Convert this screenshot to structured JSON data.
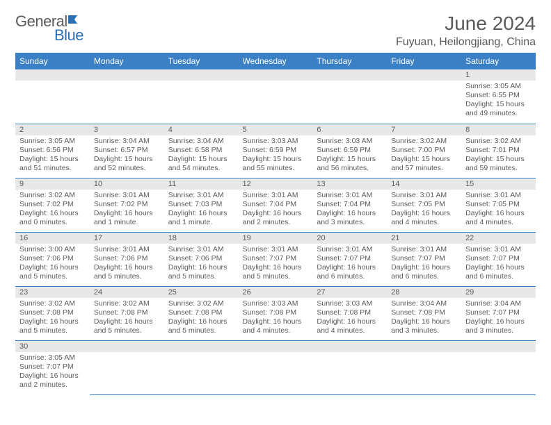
{
  "brand": {
    "part1": "General",
    "part2": "Blue"
  },
  "title": "June 2024",
  "location": "Fuyuan, Heilongjiang, China",
  "colors": {
    "header_bg": "#3b7fc4",
    "header_text": "#ffffff",
    "daynum_bg": "#e8e8e8",
    "text": "#5a5a5a",
    "rule": "#3b7fc4",
    "brand_blue": "#2d6fb5"
  },
  "weekdays": [
    "Sunday",
    "Monday",
    "Tuesday",
    "Wednesday",
    "Thursday",
    "Friday",
    "Saturday"
  ],
  "weeks": [
    [
      null,
      null,
      null,
      null,
      null,
      null,
      {
        "n": "1",
        "sr": "Sunrise: 3:05 AM",
        "ss": "Sunset: 6:55 PM",
        "dl": "Daylight: 15 hours and 49 minutes."
      }
    ],
    [
      {
        "n": "2",
        "sr": "Sunrise: 3:05 AM",
        "ss": "Sunset: 6:56 PM",
        "dl": "Daylight: 15 hours and 51 minutes."
      },
      {
        "n": "3",
        "sr": "Sunrise: 3:04 AM",
        "ss": "Sunset: 6:57 PM",
        "dl": "Daylight: 15 hours and 52 minutes."
      },
      {
        "n": "4",
        "sr": "Sunrise: 3:04 AM",
        "ss": "Sunset: 6:58 PM",
        "dl": "Daylight: 15 hours and 54 minutes."
      },
      {
        "n": "5",
        "sr": "Sunrise: 3:03 AM",
        "ss": "Sunset: 6:59 PM",
        "dl": "Daylight: 15 hours and 55 minutes."
      },
      {
        "n": "6",
        "sr": "Sunrise: 3:03 AM",
        "ss": "Sunset: 6:59 PM",
        "dl": "Daylight: 15 hours and 56 minutes."
      },
      {
        "n": "7",
        "sr": "Sunrise: 3:02 AM",
        "ss": "Sunset: 7:00 PM",
        "dl": "Daylight: 15 hours and 57 minutes."
      },
      {
        "n": "8",
        "sr": "Sunrise: 3:02 AM",
        "ss": "Sunset: 7:01 PM",
        "dl": "Daylight: 15 hours and 59 minutes."
      }
    ],
    [
      {
        "n": "9",
        "sr": "Sunrise: 3:02 AM",
        "ss": "Sunset: 7:02 PM",
        "dl": "Daylight: 16 hours and 0 minutes."
      },
      {
        "n": "10",
        "sr": "Sunrise: 3:01 AM",
        "ss": "Sunset: 7:02 PM",
        "dl": "Daylight: 16 hours and 1 minute."
      },
      {
        "n": "11",
        "sr": "Sunrise: 3:01 AM",
        "ss": "Sunset: 7:03 PM",
        "dl": "Daylight: 16 hours and 1 minute."
      },
      {
        "n": "12",
        "sr": "Sunrise: 3:01 AM",
        "ss": "Sunset: 7:04 PM",
        "dl": "Daylight: 16 hours and 2 minutes."
      },
      {
        "n": "13",
        "sr": "Sunrise: 3:01 AM",
        "ss": "Sunset: 7:04 PM",
        "dl": "Daylight: 16 hours and 3 minutes."
      },
      {
        "n": "14",
        "sr": "Sunrise: 3:01 AM",
        "ss": "Sunset: 7:05 PM",
        "dl": "Daylight: 16 hours and 4 minutes."
      },
      {
        "n": "15",
        "sr": "Sunrise: 3:01 AM",
        "ss": "Sunset: 7:05 PM",
        "dl": "Daylight: 16 hours and 4 minutes."
      }
    ],
    [
      {
        "n": "16",
        "sr": "Sunrise: 3:00 AM",
        "ss": "Sunset: 7:06 PM",
        "dl": "Daylight: 16 hours and 5 minutes."
      },
      {
        "n": "17",
        "sr": "Sunrise: 3:01 AM",
        "ss": "Sunset: 7:06 PM",
        "dl": "Daylight: 16 hours and 5 minutes."
      },
      {
        "n": "18",
        "sr": "Sunrise: 3:01 AM",
        "ss": "Sunset: 7:06 PM",
        "dl": "Daylight: 16 hours and 5 minutes."
      },
      {
        "n": "19",
        "sr": "Sunrise: 3:01 AM",
        "ss": "Sunset: 7:07 PM",
        "dl": "Daylight: 16 hours and 5 minutes."
      },
      {
        "n": "20",
        "sr": "Sunrise: 3:01 AM",
        "ss": "Sunset: 7:07 PM",
        "dl": "Daylight: 16 hours and 6 minutes."
      },
      {
        "n": "21",
        "sr": "Sunrise: 3:01 AM",
        "ss": "Sunset: 7:07 PM",
        "dl": "Daylight: 16 hours and 6 minutes."
      },
      {
        "n": "22",
        "sr": "Sunrise: 3:01 AM",
        "ss": "Sunset: 7:07 PM",
        "dl": "Daylight: 16 hours and 6 minutes."
      }
    ],
    [
      {
        "n": "23",
        "sr": "Sunrise: 3:02 AM",
        "ss": "Sunset: 7:08 PM",
        "dl": "Daylight: 16 hours and 5 minutes."
      },
      {
        "n": "24",
        "sr": "Sunrise: 3:02 AM",
        "ss": "Sunset: 7:08 PM",
        "dl": "Daylight: 16 hours and 5 minutes."
      },
      {
        "n": "25",
        "sr": "Sunrise: 3:02 AM",
        "ss": "Sunset: 7:08 PM",
        "dl": "Daylight: 16 hours and 5 minutes."
      },
      {
        "n": "26",
        "sr": "Sunrise: 3:03 AM",
        "ss": "Sunset: 7:08 PM",
        "dl": "Daylight: 16 hours and 4 minutes."
      },
      {
        "n": "27",
        "sr": "Sunrise: 3:03 AM",
        "ss": "Sunset: 7:08 PM",
        "dl": "Daylight: 16 hours and 4 minutes."
      },
      {
        "n": "28",
        "sr": "Sunrise: 3:04 AM",
        "ss": "Sunset: 7:08 PM",
        "dl": "Daylight: 16 hours and 3 minutes."
      },
      {
        "n": "29",
        "sr": "Sunrise: 3:04 AM",
        "ss": "Sunset: 7:07 PM",
        "dl": "Daylight: 16 hours and 3 minutes."
      }
    ],
    [
      {
        "n": "30",
        "sr": "Sunrise: 3:05 AM",
        "ss": "Sunset: 7:07 PM",
        "dl": "Daylight: 16 hours and 2 minutes."
      },
      null,
      null,
      null,
      null,
      null,
      null
    ]
  ]
}
